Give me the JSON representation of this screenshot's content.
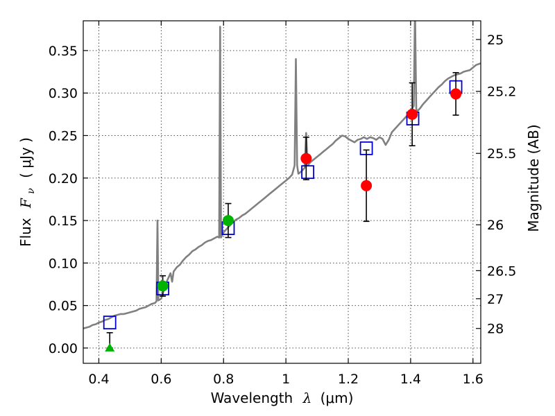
{
  "chart_data": {
    "type": "scatter",
    "title": "",
    "xlabel_text": "Wavelength",
    "xlabel_symbol": "λ",
    "xlabel_unit": "(μm)",
    "ylabel_text": "Flux",
    "ylabel_symbol": "F",
    "ylabel_subscript": "ν",
    "ylabel_unit": "( μJy )",
    "y2label": "Magnitude (AB)",
    "xlim": [
      0.35,
      1.625
    ],
    "ylim": [
      -0.018,
      0.385
    ],
    "grid": true,
    "x_ticks": [
      0.4,
      0.6,
      0.8,
      1.0,
      1.2,
      1.4,
      1.6
    ],
    "x_tick_labels": [
      "0.4",
      "0.6",
      "0.8",
      "1",
      "1.2",
      "1.4",
      "1.6"
    ],
    "y_ticks": [
      0.0,
      0.05,
      0.1,
      0.15,
      0.2,
      0.25,
      0.3,
      0.35
    ],
    "y_tick_labels": [
      "0.00",
      "0.05",
      "0.10",
      "0.15",
      "0.20",
      "0.25",
      "0.30",
      "0.35"
    ],
    "y2_ticks": [
      {
        "label": "25",
        "flux": 0.363
      },
      {
        "label": "25.2",
        "flux": 0.302
      },
      {
        "label": "25.5",
        "flux": 0.229
      },
      {
        "label": "26",
        "flux": 0.145
      },
      {
        "label": "26.5",
        "flux": 0.091
      },
      {
        "label": "27",
        "flux": 0.058
      },
      {
        "label": "28",
        "flux": 0.023
      }
    ],
    "colors": {
      "spectrum": "#808080",
      "model_box": "#0000cc",
      "red_points": "#ff0000",
      "green_points": "#00b300",
      "error_bars": "#000000"
    },
    "spectrum": [
      [
        0.35,
        0.023
      ],
      [
        0.36,
        0.024
      ],
      [
        0.37,
        0.025
      ],
      [
        0.38,
        0.027
      ],
      [
        0.39,
        0.028
      ],
      [
        0.4,
        0.03
      ],
      [
        0.41,
        0.031
      ],
      [
        0.42,
        0.033
      ],
      [
        0.43,
        0.034
      ],
      [
        0.44,
        0.036
      ],
      [
        0.45,
        0.038
      ],
      [
        0.46,
        0.039
      ],
      [
        0.47,
        0.04
      ],
      [
        0.48,
        0.04
      ],
      [
        0.49,
        0.041
      ],
      [
        0.5,
        0.042
      ],
      [
        0.51,
        0.043
      ],
      [
        0.52,
        0.044
      ],
      [
        0.53,
        0.046
      ],
      [
        0.54,
        0.047
      ],
      [
        0.55,
        0.048
      ],
      [
        0.56,
        0.05
      ],
      [
        0.57,
        0.052
      ],
      [
        0.58,
        0.053
      ],
      [
        0.585,
        0.055
      ],
      [
        0.588,
        0.15
      ],
      [
        0.591,
        0.056
      ],
      [
        0.6,
        0.058
      ],
      [
        0.61,
        0.07
      ],
      [
        0.62,
        0.08
      ],
      [
        0.63,
        0.088
      ],
      [
        0.635,
        0.078
      ],
      [
        0.64,
        0.09
      ],
      [
        0.65,
        0.095
      ],
      [
        0.66,
        0.098
      ],
      [
        0.67,
        0.103
      ],
      [
        0.68,
        0.107
      ],
      [
        0.69,
        0.11
      ],
      [
        0.7,
        0.114
      ],
      [
        0.71,
        0.116
      ],
      [
        0.72,
        0.119
      ],
      [
        0.73,
        0.121
      ],
      [
        0.74,
        0.124
      ],
      [
        0.75,
        0.126
      ],
      [
        0.76,
        0.127
      ],
      [
        0.77,
        0.129
      ],
      [
        0.78,
        0.131
      ],
      [
        0.786,
        0.13
      ],
      [
        0.789,
        0.378
      ],
      [
        0.792,
        0.13
      ],
      [
        0.8,
        0.136
      ],
      [
        0.81,
        0.14
      ],
      [
        0.82,
        0.144
      ],
      [
        0.83,
        0.148
      ],
      [
        0.84,
        0.151
      ],
      [
        0.85,
        0.153
      ],
      [
        0.86,
        0.156
      ],
      [
        0.87,
        0.158
      ],
      [
        0.88,
        0.161
      ],
      [
        0.89,
        0.164
      ],
      [
        0.9,
        0.167
      ],
      [
        0.91,
        0.17
      ],
      [
        0.92,
        0.173
      ],
      [
        0.93,
        0.176
      ],
      [
        0.94,
        0.179
      ],
      [
        0.95,
        0.182
      ],
      [
        0.96,
        0.185
      ],
      [
        0.97,
        0.188
      ],
      [
        0.98,
        0.191
      ],
      [
        0.99,
        0.194
      ],
      [
        1.0,
        0.197
      ],
      [
        1.01,
        0.2
      ],
      [
        1.02,
        0.204
      ],
      [
        1.028,
        0.215
      ],
      [
        1.032,
        0.34
      ],
      [
        1.036,
        0.215
      ],
      [
        1.04,
        0.205
      ],
      [
        1.05,
        0.208
      ],
      [
        1.06,
        0.212
      ],
      [
        1.065,
        0.253
      ],
      [
        1.07,
        0.215
      ],
      [
        1.08,
        0.219
      ],
      [
        1.09,
        0.222
      ],
      [
        1.1,
        0.225
      ],
      [
        1.11,
        0.228
      ],
      [
        1.12,
        0.231
      ],
      [
        1.13,
        0.234
      ],
      [
        1.14,
        0.237
      ],
      [
        1.15,
        0.24
      ],
      [
        1.16,
        0.244
      ],
      [
        1.17,
        0.247
      ],
      [
        1.18,
        0.25
      ],
      [
        1.19,
        0.249
      ],
      [
        1.2,
        0.246
      ],
      [
        1.21,
        0.244
      ],
      [
        1.22,
        0.242
      ],
      [
        1.23,
        0.245
      ],
      [
        1.24,
        0.246
      ],
      [
        1.25,
        0.248
      ],
      [
        1.26,
        0.246
      ],
      [
        1.27,
        0.248
      ],
      [
        1.28,
        0.247
      ],
      [
        1.29,
        0.245
      ],
      [
        1.3,
        0.248
      ],
      [
        1.31,
        0.246
      ],
      [
        1.32,
        0.239
      ],
      [
        1.33,
        0.245
      ],
      [
        1.34,
        0.254
      ],
      [
        1.35,
        0.258
      ],
      [
        1.36,
        0.262
      ],
      [
        1.37,
        0.266
      ],
      [
        1.38,
        0.27
      ],
      [
        1.39,
        0.274
      ],
      [
        1.4,
        0.278
      ],
      [
        1.41,
        0.285
      ],
      [
        1.414,
        0.4
      ],
      [
        1.418,
        0.282
      ],
      [
        1.42,
        0.278
      ],
      [
        1.43,
        0.282
      ],
      [
        1.44,
        0.287
      ],
      [
        1.45,
        0.291
      ],
      [
        1.46,
        0.295
      ],
      [
        1.47,
        0.299
      ],
      [
        1.48,
        0.303
      ],
      [
        1.49,
        0.307
      ],
      [
        1.5,
        0.31
      ],
      [
        1.51,
        0.314
      ],
      [
        1.52,
        0.317
      ],
      [
        1.53,
        0.319
      ],
      [
        1.54,
        0.321
      ],
      [
        1.55,
        0.322
      ],
      [
        1.56,
        0.323
      ],
      [
        1.57,
        0.325
      ],
      [
        1.58,
        0.326
      ],
      [
        1.59,
        0.327
      ],
      [
        1.6,
        0.33
      ],
      [
        1.61,
        0.333
      ],
      [
        1.625,
        0.335
      ]
    ],
    "model_boxes": [
      {
        "x": 0.435,
        "y": 0.03
      },
      {
        "x": 0.605,
        "y": 0.07
      },
      {
        "x": 0.815,
        "y": 0.141
      },
      {
        "x": 1.07,
        "y": 0.207
      },
      {
        "x": 1.258,
        "y": 0.235
      },
      {
        "x": 1.407,
        "y": 0.27
      },
      {
        "x": 1.545,
        "y": 0.307
      }
    ],
    "measurements": [
      {
        "x": 0.435,
        "y": 0.0,
        "err": 0.018,
        "color": "green",
        "marker": "triangle"
      },
      {
        "x": 0.605,
        "y": 0.073,
        "err": 0.012,
        "color": "green",
        "marker": "circle"
      },
      {
        "x": 0.815,
        "y": 0.15,
        "err": 0.02,
        "color": "green",
        "marker": "circle"
      },
      {
        "x": 1.065,
        "y": 0.223,
        "err": 0.025,
        "color": "red",
        "marker": "circle"
      },
      {
        "x": 1.258,
        "y": 0.191,
        "err": 0.042,
        "color": "red",
        "marker": "circle"
      },
      {
        "x": 1.405,
        "y": 0.275,
        "err": 0.037,
        "color": "red",
        "marker": "circle"
      },
      {
        "x": 1.545,
        "y": 0.299,
        "err": 0.025,
        "color": "red",
        "marker": "circle"
      }
    ]
  }
}
